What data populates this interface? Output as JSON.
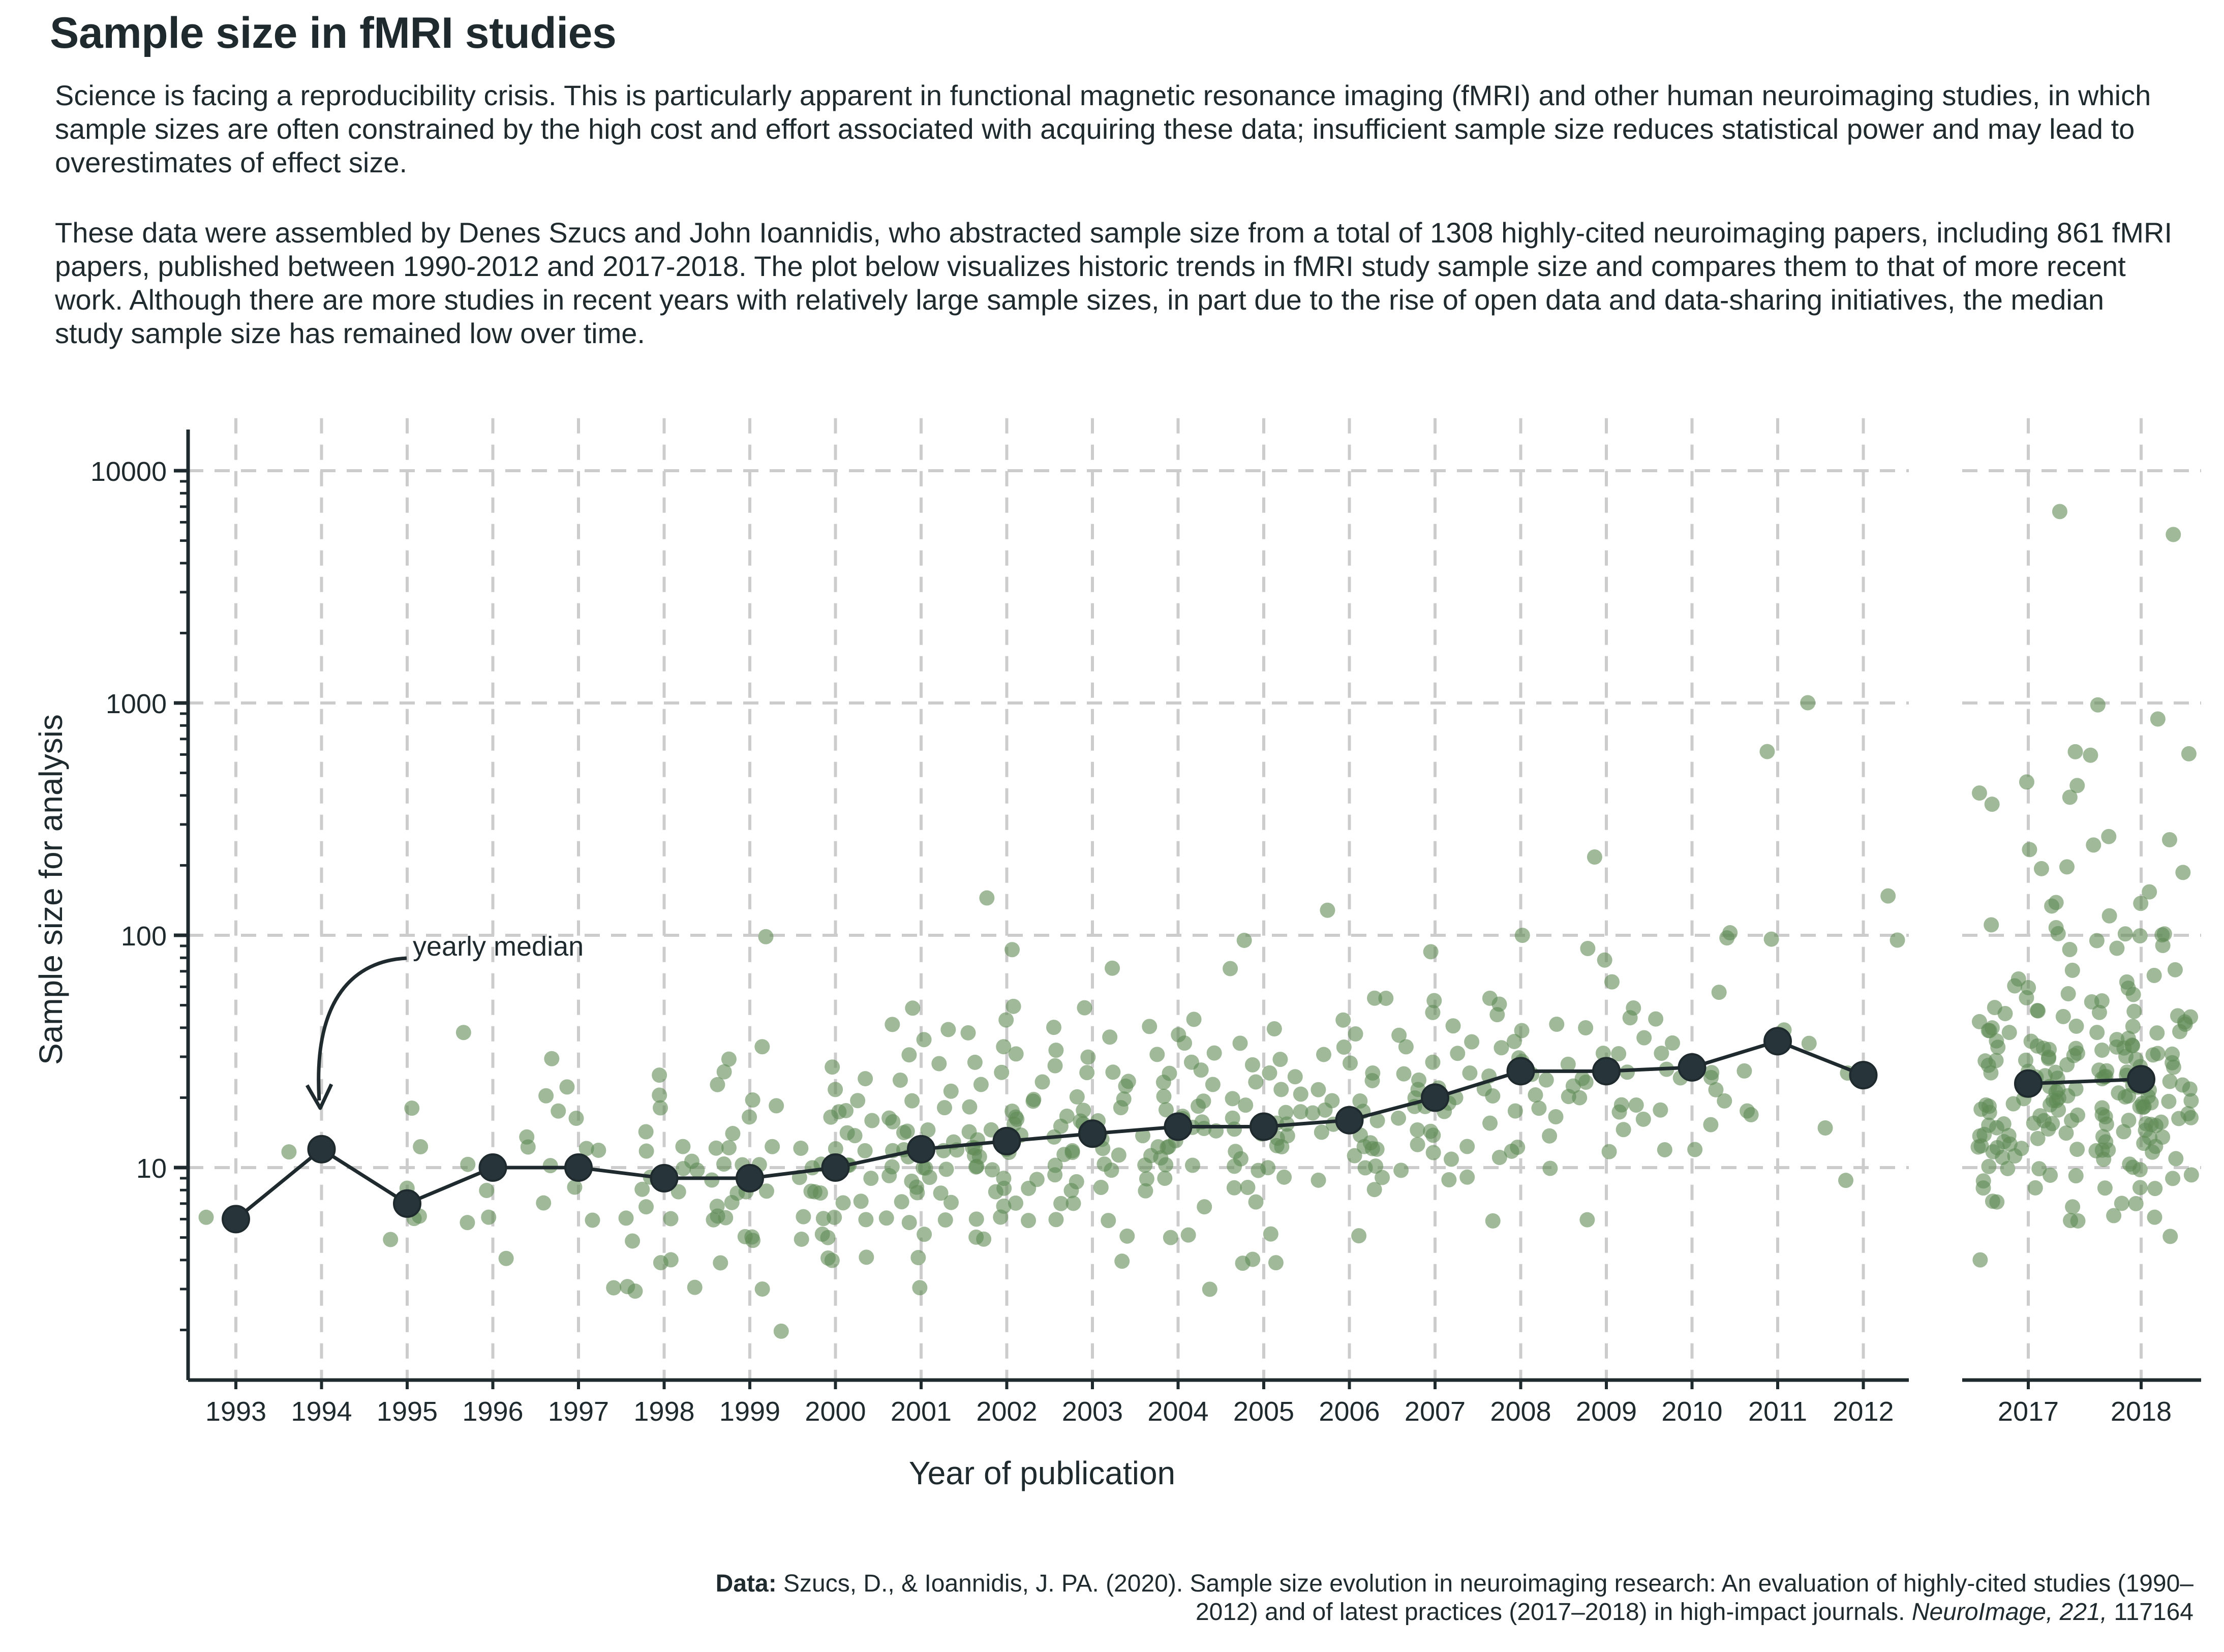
{
  "title": "Sample size in fMRI studies",
  "paragraphs": [
    "Science is facing a reproducibility crisis. This is particularly apparent in functional magnetic resonance imaging (fMRI) and other human neuroimaging studies, in which sample sizes are often constrained by the high cost and effort associated with acquiring these data; insufficient sample size reduces statistical power and may lead to overestimates of effect size.",
    "These data were assembled by Denes Szucs and John Ioannidis, who abstracted sample size from a total of 1308 highly-cited neuroimaging papers, including 861 fMRI papers, published between 1990-2012 and 2017-2018. The plot below visualizes historic trends in fMRI study sample size and compares them to that of more recent work. Although there are more studies in recent years with relatively large sample sizes, in part due to the rise of open data and data-sharing initiatives, the median study sample size has remained low over time."
  ],
  "source": {
    "label": "Data:",
    "text": "Szucs, D., & Ioannidis, J. PA. (2020). Sample size evolution in neuroimaging research: An evaluation of highly-cited studies (1990–2012) and of latest practices (2017–2018) in high-impact journals.",
    "journal": "NeuroImage, 221,",
    "id": "117164"
  },
  "colors": {
    "points": "#5f8a55",
    "median": "#1f2a2e",
    "grid": "#cccccc",
    "text": "#1f2a2e"
  },
  "chart_data": {
    "type": "scatter",
    "scale": "log",
    "title": "Sample size in fMRI studies",
    "xlabel": "Year of publication",
    "ylabel": "Sample size for analysis",
    "ylim": [
      1.4,
      16000
    ],
    "yticks": [
      10,
      100,
      1000,
      10000
    ],
    "ytick_labels": [
      "10",
      "100",
      "1000",
      "10000"
    ],
    "panels": [
      {
        "name": "historic",
        "years": [
          1993,
          1994,
          1995,
          1996,
          1997,
          1998,
          1999,
          2000,
          2001,
          2002,
          2003,
          2004,
          2005,
          2006,
          2007,
          2008,
          2009,
          2010,
          2011,
          2012
        ]
      },
      {
        "name": "recent",
        "years": [
          2017,
          2018
        ]
      }
    ],
    "annotation": {
      "text": "yearly median",
      "year": 1994,
      "value": 12
    },
    "medians": [
      {
        "year": 1993,
        "value": 6
      },
      {
        "year": 1994,
        "value": 12
      },
      {
        "year": 1995,
        "value": 7
      },
      {
        "year": 1996,
        "value": 10
      },
      {
        "year": 1997,
        "value": 10
      },
      {
        "year": 1998,
        "value": 9
      },
      {
        "year": 1999,
        "value": 9
      },
      {
        "year": 2000,
        "value": 10
      },
      {
        "year": 2001,
        "value": 12
      },
      {
        "year": 2002,
        "value": 13
      },
      {
        "year": 2003,
        "value": 14
      },
      {
        "year": 2004,
        "value": 15
      },
      {
        "year": 2005,
        "value": 15
      },
      {
        "year": 2006,
        "value": 16
      },
      {
        "year": 2007,
        "value": 20
      },
      {
        "year": 2008,
        "value": 26
      },
      {
        "year": 2009,
        "value": 26
      },
      {
        "year": 2010,
        "value": 27
      },
      {
        "year": 2011,
        "value": 35
      },
      {
        "year": 2012,
        "value": 25
      },
      {
        "year": 2017,
        "value": 23
      },
      {
        "year": 2018,
        "value": 24
      }
    ],
    "studies": [
      {
        "year": 1993,
        "values": [
          6,
          6
        ]
      },
      {
        "year": 1994,
        "values": [
          12,
          12
        ]
      },
      {
        "year": 1995,
        "values": [
          6,
          5,
          6,
          8,
          12,
          18
        ]
      },
      {
        "year": 1996,
        "values": [
          10,
          14,
          38,
          12,
          8,
          4,
          6,
          6,
          10
        ]
      },
      {
        "year": 1997,
        "values": [
          30,
          22,
          21,
          18,
          16,
          12,
          12,
          10,
          8,
          7,
          6,
          3
        ]
      },
      {
        "year": 1998,
        "values": [
          25,
          21,
          18,
          14,
          12,
          12,
          11,
          10,
          10,
          9,
          9,
          8,
          8,
          7,
          6,
          6,
          5,
          4,
          4,
          3,
          3,
          3
        ]
      },
      {
        "year": 1999,
        "values": [
          100,
          34,
          30,
          25,
          22,
          20,
          18,
          16,
          14,
          12,
          12,
          12,
          10,
          10,
          10,
          9,
          9,
          8,
          8,
          8,
          7,
          7,
          6,
          6,
          6,
          5,
          5,
          5,
          4,
          3,
          2
        ]
      },
      {
        "year": 2000,
        "values": [
          28,
          24,
          22,
          20,
          18,
          18,
          16,
          16,
          14,
          14,
          12,
          12,
          12,
          11,
          10,
          10,
          10,
          10,
          9,
          9,
          8,
          8,
          8,
          7,
          7,
          6,
          6,
          6,
          6,
          5,
          5,
          5,
          4,
          4,
          4
        ]
      },
      {
        "year": 2001,
        "values": [
          47,
          42,
          38,
          35,
          30,
          28,
          24,
          22,
          20,
          18,
          16,
          16,
          15,
          14,
          14,
          13,
          12,
          12,
          12,
          12,
          11,
          10,
          10,
          10,
          10,
          9,
          9,
          9,
          8,
          8,
          8,
          7,
          7,
          6,
          6,
          6,
          5,
          4,
          3
        ]
      },
      {
        "year": 2002,
        "values": [
          145,
          85,
          50,
          42,
          38,
          32,
          30,
          28,
          26,
          24,
          22,
          20,
          20,
          18,
          18,
          16,
          16,
          15,
          15,
          14,
          14,
          13,
          12,
          12,
          12,
          12,
          11,
          11,
          10,
          10,
          10,
          9,
          9,
          8,
          8,
          8,
          7,
          7,
          6,
          6,
          6,
          5,
          5
        ]
      },
      {
        "year": 2003,
        "values": [
          70,
          48,
          40,
          36,
          32,
          30,
          28,
          26,
          25,
          24,
          22,
          20,
          20,
          18,
          18,
          17,
          16,
          16,
          15,
          15,
          14,
          14,
          13,
          12,
          12,
          12,
          11,
          11,
          10,
          10,
          10,
          9,
          9,
          8,
          8,
          7,
          7,
          6,
          6,
          5,
          4
        ]
      },
      {
        "year": 2004,
        "values": [
          42,
          40,
          38,
          35,
          32,
          30,
          28,
          26,
          25,
          24,
          22,
          20,
          20,
          18,
          18,
          17,
          16,
          16,
          15,
          15,
          14,
          14,
          13,
          12,
          12,
          12,
          11,
          11,
          10,
          10,
          10,
          9,
          9,
          8,
          7,
          5,
          5,
          3
        ]
      },
      {
        "year": 2005,
        "values": [
          95,
          70,
          40,
          35,
          30,
          28,
          26,
          25,
          24,
          22,
          20,
          20,
          18,
          18,
          17,
          16,
          16,
          15,
          15,
          14,
          14,
          13,
          12,
          12,
          12,
          11,
          10,
          10,
          10,
          9,
          8,
          8,
          7,
          5,
          4,
          4,
          4
        ]
      },
      {
        "year": 2006,
        "values": [
          125,
          52,
          52,
          42,
          38,
          34,
          30,
          28,
          26,
          24,
          22,
          20,
          20,
          18,
          18,
          17,
          16,
          16,
          15,
          14,
          14,
          13,
          12,
          12,
          12,
          11,
          10,
          10,
          9,
          9,
          8,
          5
        ]
      },
      {
        "year": 2007,
        "values": [
          83,
          52,
          48,
          42,
          38,
          34,
          32,
          30,
          28,
          26,
          25,
          24,
          22,
          21,
          20,
          20,
          19,
          18,
          18,
          17,
          16,
          15,
          14,
          14,
          13,
          12,
          12,
          11,
          10,
          9,
          9
        ]
      },
      {
        "year": 2008,
        "values": [
          98,
          55,
          50,
          45,
          40,
          40,
          35,
          32,
          30,
          28,
          26,
          25,
          24,
          22,
          20,
          20,
          18,
          17,
          17,
          16,
          14,
          12,
          12,
          11,
          10,
          6
        ]
      },
      {
        "year": 2009,
        "values": [
          210,
          90,
          80,
          65,
          50,
          45,
          40,
          35,
          32,
          30,
          28,
          26,
          25,
          24,
          22,
          20,
          20,
          18,
          18,
          17,
          16,
          15,
          12,
          6
        ]
      },
      {
        "year": 2010,
        "values": [
          102,
          98,
          55,
          45,
          35,
          30,
          27,
          26,
          25,
          24,
          22,
          20,
          18,
          15,
          12,
          12
        ]
      },
      {
        "year": 2011,
        "values": [
          1000,
          600,
          93,
          40,
          35,
          26,
          17,
          17
        ]
      },
      {
        "year": 2012,
        "values": [
          145,
          93,
          25,
          15,
          9
        ]
      },
      {
        "year": 2017,
        "values": [
          6700,
          600,
          470,
          440,
          420,
          400,
          360,
          230,
          200,
          190,
          140,
          130,
          110,
          110,
          100,
          85,
          72,
          65,
          62,
          58,
          55,
          52,
          50,
          48,
          46,
          45,
          44,
          42,
          40,
          40,
          38,
          38,
          37,
          36,
          35,
          34,
          34,
          33,
          32,
          32,
          31,
          30,
          30,
          30,
          29,
          28,
          28,
          27,
          27,
          26,
          26,
          25,
          25,
          24,
          24,
          24,
          23,
          23,
          22,
          22,
          22,
          21,
          21,
          20,
          20,
          20,
          20,
          19,
          19,
          19,
          18,
          18,
          18,
          18,
          17,
          17,
          17,
          16,
          16,
          16,
          16,
          15,
          15,
          15,
          15,
          14,
          14,
          14,
          14,
          13,
          13,
          13,
          12,
          12,
          12,
          12,
          12,
          12,
          11,
          11,
          10,
          10,
          10,
          9,
          9,
          9,
          8,
          8,
          7,
          7,
          7,
          6,
          6,
          4
        ]
      },
      {
        "year": 2018,
        "values": [
          5200,
          1000,
          830,
          620,
          610,
          260,
          250,
          240,
          180,
          150,
          135,
          125,
          100,
          100,
          100,
          98,
          96,
          90,
          85,
          72,
          68,
          65,
          60,
          55,
          52,
          50,
          48,
          46,
          45,
          44,
          42,
          40,
          40,
          38,
          38,
          37,
          36,
          35,
          34,
          34,
          33,
          32,
          32,
          31,
          30,
          30,
          30,
          29,
          28,
          28,
          27,
          27,
          26,
          26,
          25,
          25,
          24,
          24,
          24,
          23,
          23,
          22,
          22,
          22,
          21,
          21,
          20,
          20,
          20,
          20,
          19,
          19,
          19,
          18,
          18,
          18,
          18,
          17,
          17,
          17,
          16,
          16,
          16,
          16,
          15,
          15,
          15,
          15,
          14,
          14,
          14,
          14,
          13,
          13,
          13,
          12,
          12,
          12,
          12,
          12,
          11,
          11,
          10,
          10,
          10,
          9,
          9,
          8,
          8,
          8,
          7,
          7,
          6,
          6,
          5
        ]
      }
    ]
  }
}
